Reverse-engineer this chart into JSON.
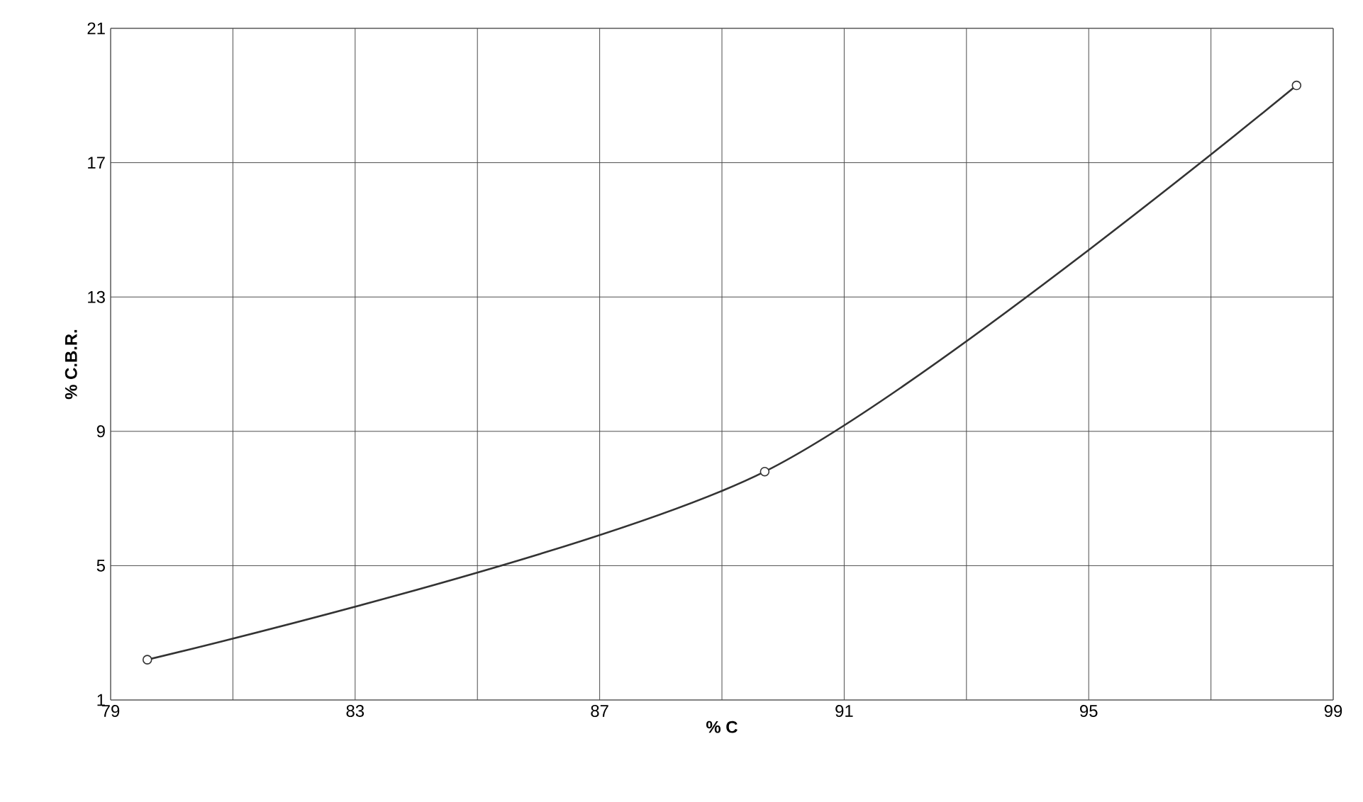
{
  "chart_data": {
    "type": "line",
    "xlabel": "% C",
    "ylabel": "% C.B.R.",
    "x": [
      79.6,
      89.7,
      98.4
    ],
    "series": [
      {
        "color": "#333333",
        "values": [
          2.2,
          7.8,
          19.3
        ]
      }
    ],
    "xlim": [
      79,
      99
    ],
    "xticks": [
      79,
      {
        "value": 81,
        "label": null
      },
      83,
      {
        "value": 85,
        "label": null
      },
      87,
      {
        "value": 89,
        "label": null
      },
      91,
      {
        "value": 93,
        "label": null
      },
      95,
      {
        "value": 97,
        "label": null
      },
      99
    ],
    "ylim": [
      1,
      21
    ],
    "yticks": [
      1,
      5,
      9,
      13,
      17,
      21
    ],
    "grid": true,
    "marker": "circle",
    "line_style": "solid"
  }
}
